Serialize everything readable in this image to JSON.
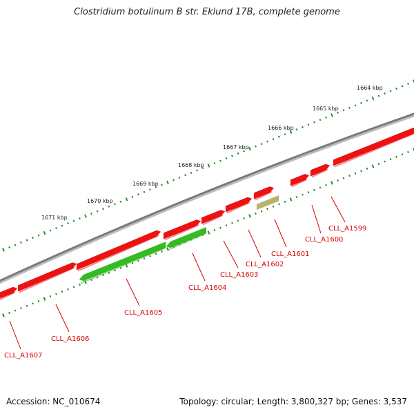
{
  "title": "Clostridium botulinum B str. Eklund 17B, complete genome",
  "footer": {
    "accession": "Accession: NC_010674",
    "summary": "Topology: circular; Length: 3,800,327 bp; Genes: 3,537"
  },
  "colors": {
    "forward_gene": "#ee1111",
    "reverse_gene": "#33bb22",
    "other_feature": "#b8b46a",
    "backbone": "#808080",
    "ticks": "#2a8a2a",
    "label": "#d40000"
  },
  "scale_labels": [
    "1664 kbp",
    "1665 kbp",
    "1666 kbp",
    "1667 kbp",
    "1668 kbp",
    "1669 kbp",
    "1670 kbp",
    "1671 kbp"
  ],
  "genes": [
    {
      "id": "CLL_A1599",
      "strand": "+",
      "type": "CDS"
    },
    {
      "id": "CLL_A1600",
      "strand": "+",
      "type": "CDS"
    },
    {
      "id": "CLL_A1601",
      "strand": "+",
      "type": "other"
    },
    {
      "id": "CLL_A1602",
      "strand": "+",
      "type": "CDS"
    },
    {
      "id": "CLL_A1603",
      "strand": "+",
      "type": "CDS"
    },
    {
      "id": "CLL_A1604",
      "strand": "-",
      "type": "CDS"
    },
    {
      "id": "CLL_A1605",
      "strand": "-",
      "type": "CDS"
    },
    {
      "id": "CLL_A1606",
      "strand": "+",
      "type": "CDS"
    },
    {
      "id": "CLL_A1607",
      "strand": "+",
      "type": "CDS"
    }
  ]
}
